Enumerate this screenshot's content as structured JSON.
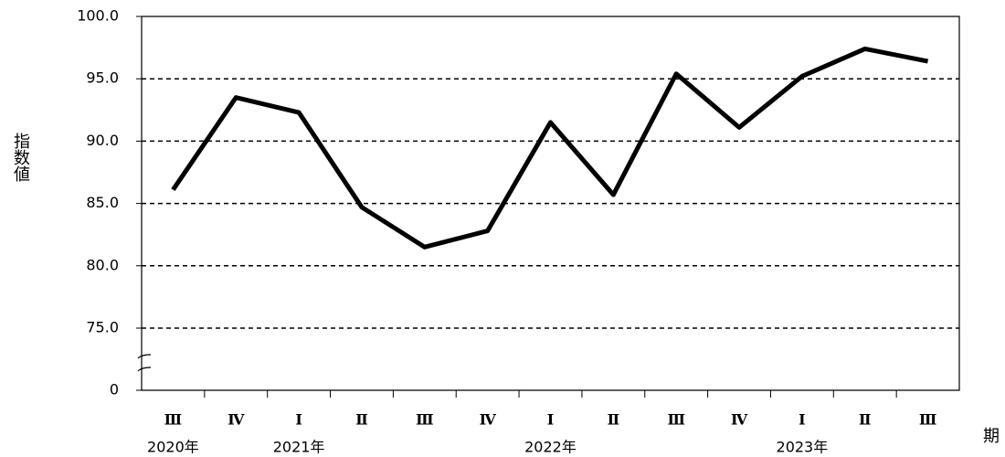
{
  "chart_data": {
    "type": "line",
    "y_label": "指数値",
    "x_label": "期",
    "categories": [
      "Ⅲ",
      "Ⅳ",
      "Ⅰ",
      "Ⅱ",
      "Ⅲ",
      "Ⅳ",
      "Ⅰ",
      "Ⅱ",
      "Ⅲ",
      "Ⅳ",
      "Ⅰ",
      "Ⅱ",
      "Ⅲ"
    ],
    "category_groups": [
      "2020年",
      null,
      "2021年",
      null,
      null,
      null,
      "2022年",
      null,
      null,
      null,
      "2023年",
      null,
      null
    ],
    "series": [
      {
        "color": "#000000",
        "values": [
          86.1,
          93.5,
          92.3,
          84.7,
          81.5,
          82.8,
          91.5,
          85.7,
          95.4,
          91.1,
          95.2,
          97.4,
          96.4
        ]
      }
    ],
    "ylim": [
      0,
      100
    ],
    "axis_break": [
      0,
      75
    ],
    "yticks": [
      0,
      {
        "value": 75,
        "label": "75.0"
      },
      {
        "value": 80,
        "label": "80.0"
      },
      {
        "value": 85,
        "label": "85.0"
      },
      {
        "value": 90,
        "label": "90.0"
      },
      {
        "value": 95,
        "label": "95.0"
      },
      {
        "value": 100,
        "label": "100.0"
      }
    ],
    "grid": true
  }
}
